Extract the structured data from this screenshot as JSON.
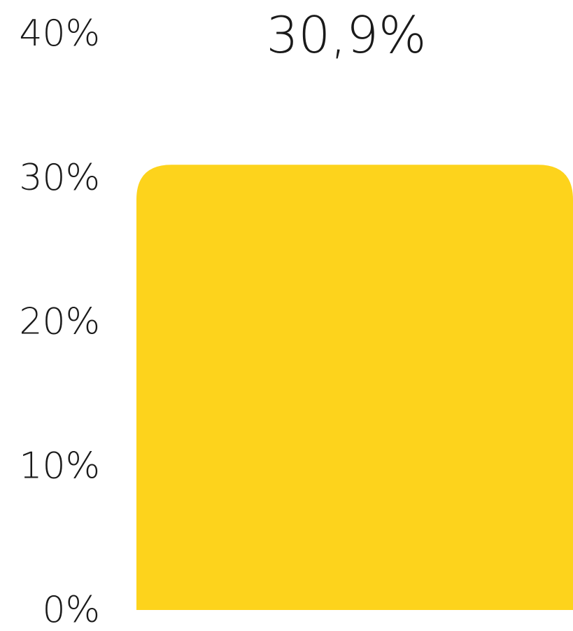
{
  "chart_data": {
    "type": "bar",
    "categories": [
      ""
    ],
    "values": [
      30.9
    ],
    "data_labels": [
      "30,9%"
    ],
    "ylim": [
      0,
      40
    ],
    "y_ticks": [
      0,
      10,
      20,
      30,
      40
    ],
    "y_tick_labels": [
      "0%",
      "10%",
      "20%",
      "30%",
      "40%"
    ],
    "grid": false,
    "legend": "none",
    "bar_color": "#FDD31C"
  }
}
